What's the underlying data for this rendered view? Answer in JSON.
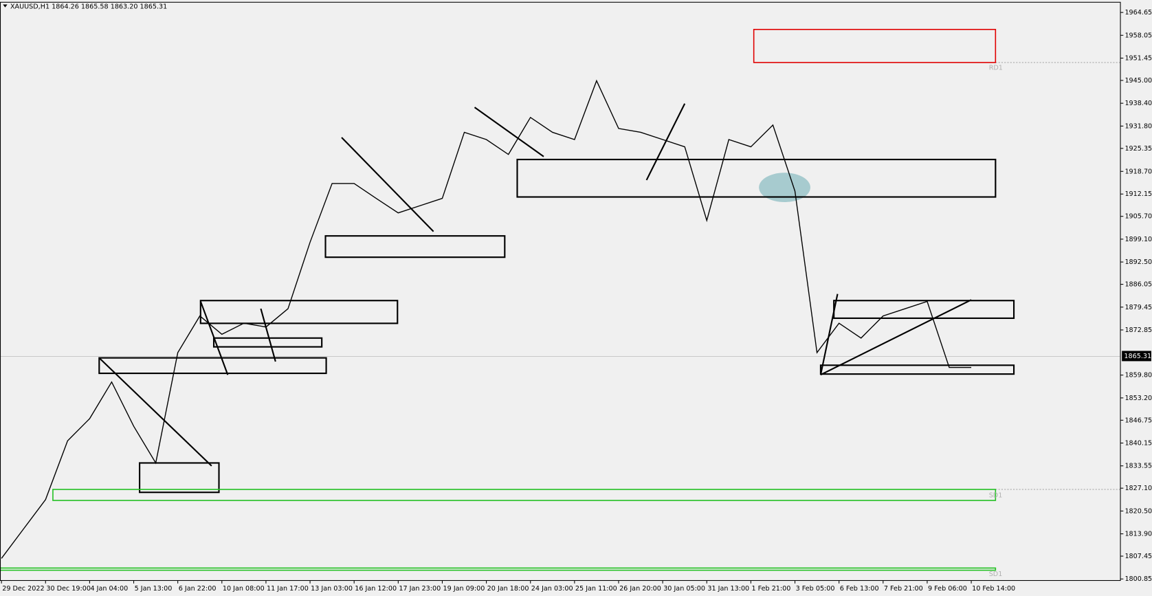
{
  "chart_data": {
    "type": "line",
    "title": "XAUUSD,H1  1864.26 1865.58 1863.20 1865.31",
    "categories": [
      "29 Dec 2022",
      null,
      "30 Dec 19:00",
      null,
      "4 Jan 04:00",
      null,
      "5 Jan 13:00",
      null,
      "6 Jan 22:00",
      null,
      "10 Jan 08:00",
      null,
      "11 Jan 17:00",
      null,
      "13 Jan 03:00",
      null,
      "16 Jan 12:00",
      null,
      "17 Jan 23:00",
      null,
      "19 Jan 09:00",
      null,
      "20 Jan 18:00",
      null,
      "24 Jan 03:00",
      null,
      "25 Jan 11:00",
      null,
      "26 Jan 20:00",
      null,
      "30 Jan 05:00",
      null,
      "31 Jan 13:00",
      null,
      "1 Feb 21:00",
      null,
      "3 Feb 05:00",
      null,
      "6 Feb 13:00",
      null,
      "7 Feb 21:00",
      null,
      "9 Feb 06:00",
      null,
      "10 Feb 14:00"
    ],
    "series": [
      {
        "color": "#000000",
        "values": [
          1806.8,
          1815.3,
          1823.8,
          1840.8,
          1847.2,
          1857.8,
          1845.0,
          1834.4,
          1866.3,
          1876.9,
          1871.6,
          1874.8,
          1873.7,
          1879.0,
          1898.2,
          1915.2,
          1915.2,
          1910.9,
          1906.7,
          1908.8,
          1910.9,
          1930.0,
          1927.9,
          1923.6,
          1934.3,
          1930.0,
          1927.9,
          1944.9,
          1931.1,
          1930.0,
          1927.9,
          1925.8,
          1904.5,
          1927.9,
          1925.8,
          1932.1,
          1913.0,
          1866.3,
          1874.8,
          1870.5,
          1876.9,
          1879.0,
          1881.1,
          1862.0,
          1862.0
        ]
      }
    ],
    "ylim": [
      1800.4,
      1967.6
    ],
    "yticks": [
      1964.65,
      1958.05,
      1951.45,
      {
        "value": 1945,
        "label": "1945.00"
      },
      {
        "value": 1938.4,
        "label": "1938.40"
      },
      {
        "value": 1931.8,
        "label": "1931.80"
      },
      1925.35,
      {
        "value": 1918.7,
        "label": "1918.70"
      },
      1912.15,
      {
        "value": 1905.7,
        "label": "1905.70"
      },
      {
        "value": 1899.1,
        "label": "1899.10"
      },
      {
        "value": 1892.5,
        "label": "1892.50"
      },
      1886.05,
      1879.45,
      1872.85,
      {
        "value": 1859.8,
        "label": "1859.80"
      },
      {
        "value": 1853.2,
        "label": "1853.20"
      },
      1846.75,
      1840.15,
      1833.55,
      {
        "value": 1827.1,
        "label": "1827.10"
      },
      {
        "value": 1820.5,
        "label": "1820.50"
      },
      {
        "value": 1813.9,
        "label": "1813.90"
      },
      1807.45,
      1800.85
    ],
    "current_price": 1865.31,
    "levels": [
      "RD1",
      "SD1",
      "SD1"
    ]
  }
}
